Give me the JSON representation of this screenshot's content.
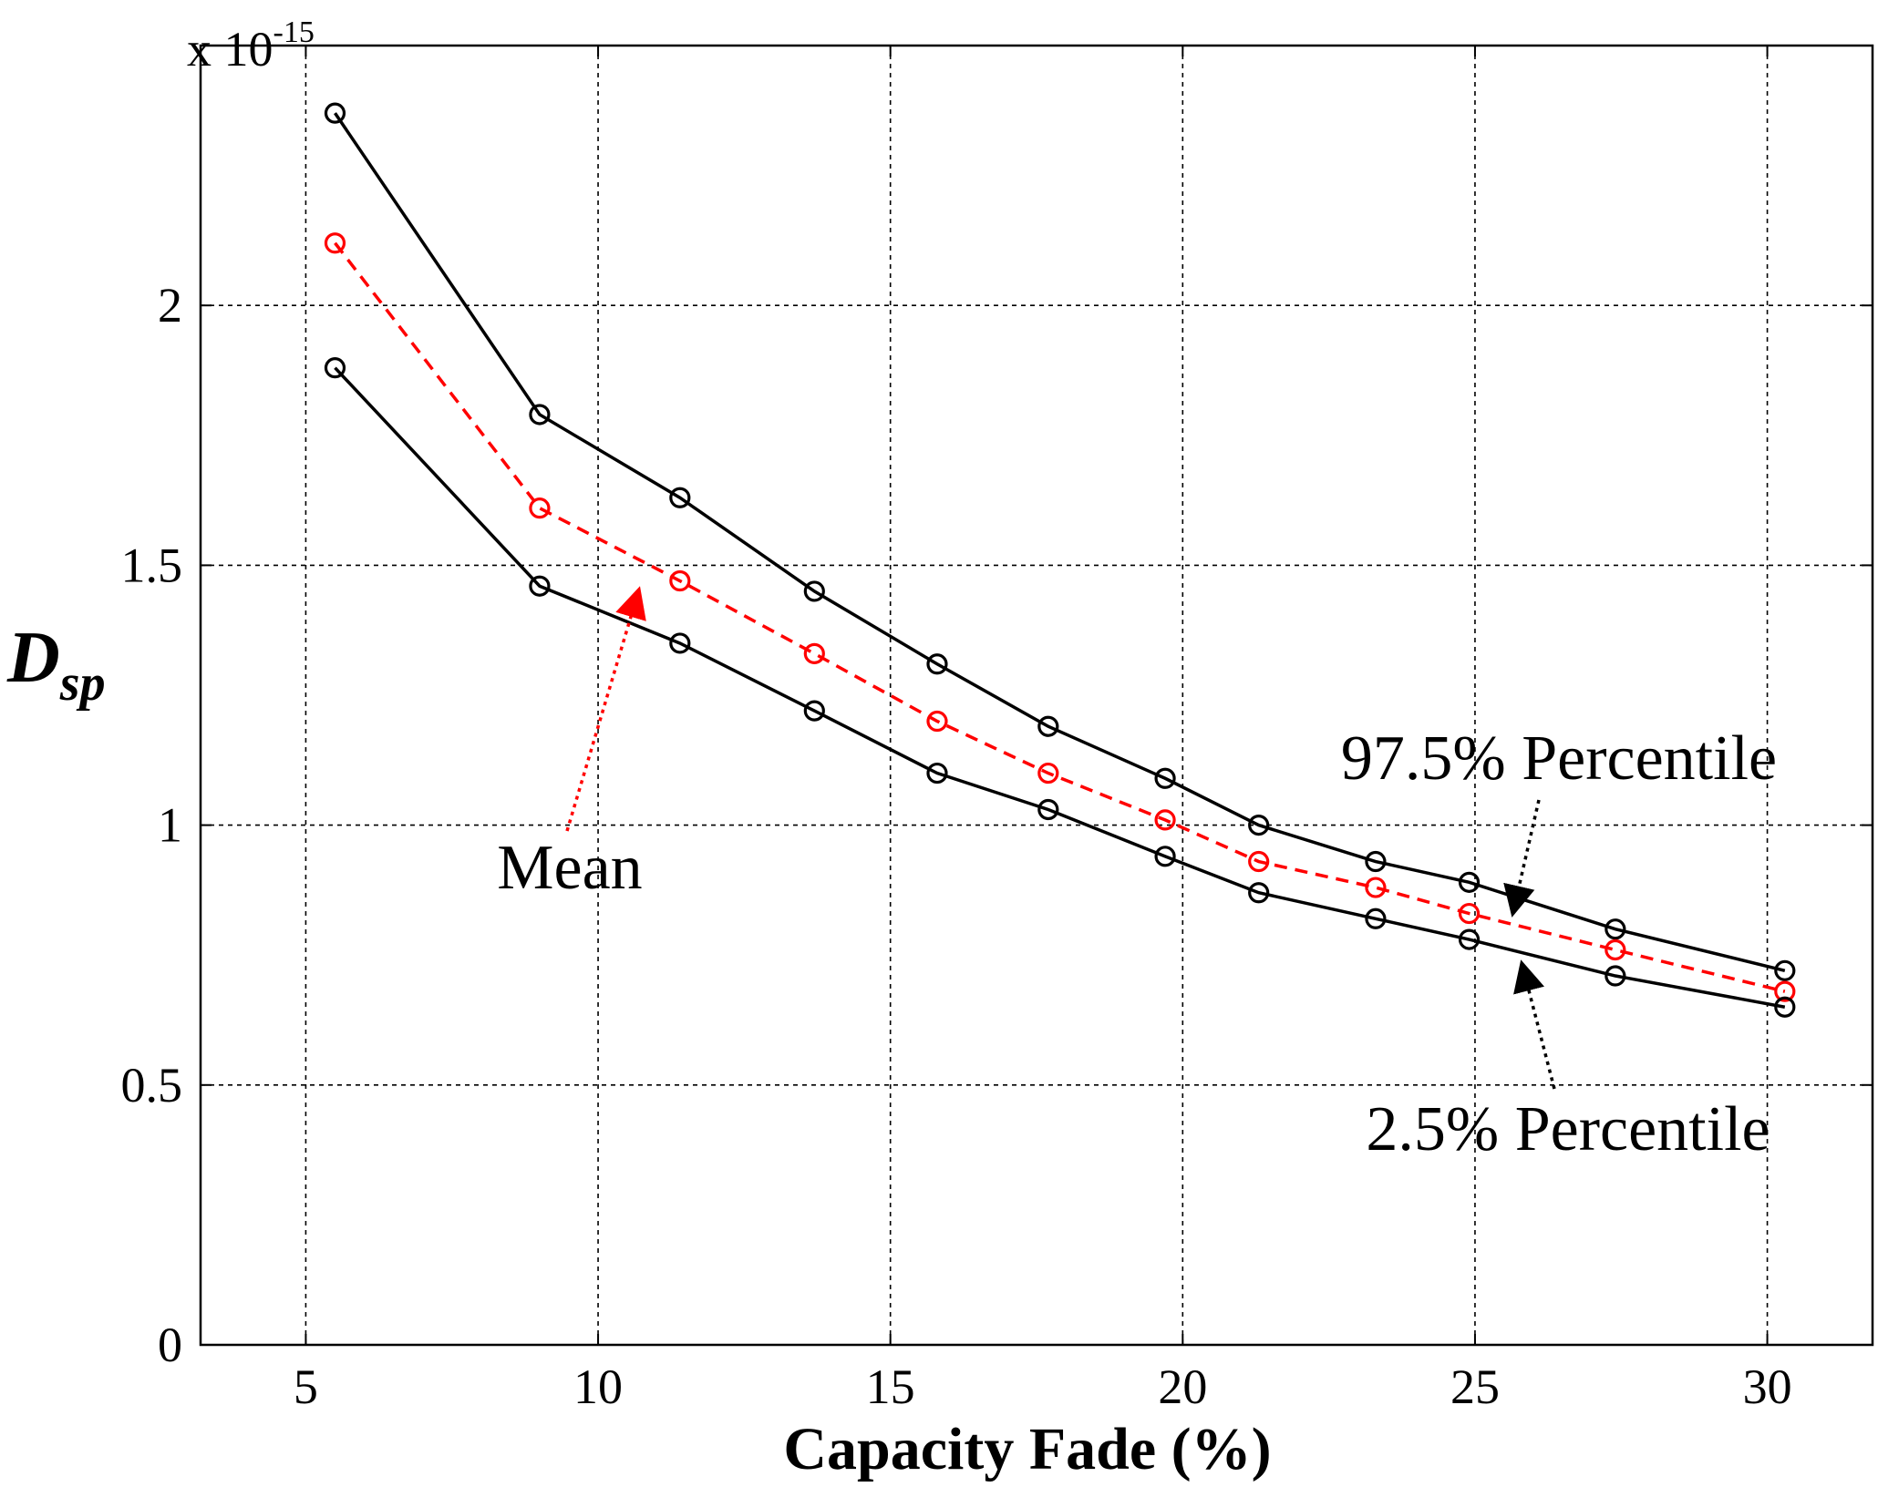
{
  "chart_data": {
    "type": "line",
    "title": "",
    "xlabel": "Capacity Fade (%)",
    "ylabel_main": "D",
    "ylabel_sub": "sp",
    "y_multiplier_prefix": "x 10",
    "y_multiplier_exponent": "-15",
    "xlim": [
      3.2,
      31.8
    ],
    "ylim": [
      0,
      2.5
    ],
    "xticks": [
      5,
      10,
      15,
      20,
      25,
      30
    ],
    "yticks": [
      0,
      0.5,
      1,
      1.5,
      2
    ],
    "xtick_labels": [
      "5",
      "10",
      "15",
      "20",
      "25",
      "30"
    ],
    "ytick_labels": [
      "0",
      "0.5",
      "1",
      "1.5",
      "2"
    ],
    "grid": true,
    "x": [
      5.5,
      9.0,
      11.4,
      13.7,
      15.8,
      17.7,
      19.7,
      21.3,
      23.3,
      24.9,
      27.4,
      30.3
    ],
    "series": [
      {
        "name": "97.5% Percentile",
        "color": "#000000",
        "dash": "solid",
        "values": [
          2.37,
          1.79,
          1.63,
          1.45,
          1.31,
          1.19,
          1.09,
          1.0,
          0.93,
          0.89,
          0.8,
          0.72
        ]
      },
      {
        "name": "Mean",
        "color": "#ff0000",
        "dash": "dashed",
        "values": [
          2.12,
          1.61,
          1.47,
          1.33,
          1.2,
          1.1,
          1.01,
          0.93,
          0.88,
          0.83,
          0.76,
          0.68
        ]
      },
      {
        "name": "2.5% Percentile",
        "color": "#000000",
        "dash": "solid",
        "values": [
          1.88,
          1.46,
          1.35,
          1.22,
          1.1,
          1.03,
          0.94,
          0.87,
          0.82,
          0.78,
          0.71,
          0.65
        ]
      }
    ],
    "annotations": [
      {
        "text": "Mean",
        "color": "#ff0000"
      },
      {
        "text": "97.5% Percentile",
        "color": "#000000"
      },
      {
        "text": "2.5% Percentile",
        "color": "#000000"
      }
    ]
  }
}
